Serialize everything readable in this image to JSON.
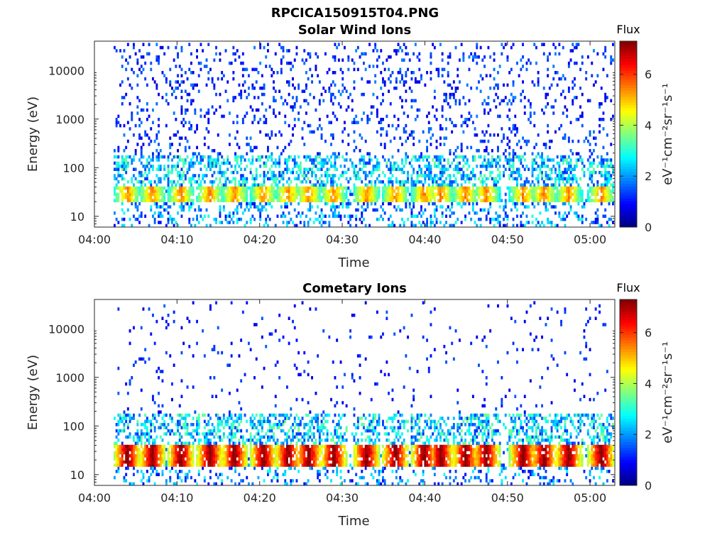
{
  "figure": {
    "filename_title": "RPCICA150915T04.PNG"
  },
  "chart_data": [
    {
      "type": "heatmap",
      "title": "Solar Wind Ions",
      "xlabel": "Time",
      "ylabel": "Energy (eV)",
      "x_ticks": [
        "04:00",
        "04:10",
        "04:20",
        "04:30",
        "04:40",
        "04:50",
        "05:00"
      ],
      "xlim_minutes": [
        0,
        63
      ],
      "yscale": "log",
      "ylim": [
        6,
        40000
      ],
      "y_ticks": [
        10,
        100,
        1000,
        10000
      ],
      "y_tick_labels": [
        "10",
        "100",
        "1000",
        "10000"
      ],
      "colorbar": {
        "label_top": "Flux",
        "unit": "eV⁻¹cm⁻²sr⁻¹s⁻¹",
        "range": [
          0,
          7.3
        ],
        "ticks": [
          0,
          2,
          4,
          6
        ],
        "colormap": "jet"
      },
      "bursts_minutes": [
        4,
        7,
        10.5,
        14,
        17,
        20.5,
        23.5,
        26,
        29,
        33,
        36.5,
        40,
        42,
        45,
        47.5,
        52,
        54.5,
        57.5,
        61.5
      ],
      "band_energy_range_eV": [
        20,
        45
      ],
      "peak_flux": 5.2,
      "background_flux": 1.3
    },
    {
      "type": "heatmap",
      "title": "Cometary Ions",
      "xlabel": "Time",
      "ylabel": "Energy (eV)",
      "x_ticks": [
        "04:00",
        "04:10",
        "04:20",
        "04:30",
        "04:40",
        "04:50",
        "05:00"
      ],
      "xlim_minutes": [
        0,
        63
      ],
      "yscale": "log",
      "ylim": [
        6,
        40000
      ],
      "y_ticks": [
        10,
        100,
        1000,
        10000
      ],
      "y_tick_labels": [
        "10",
        "100",
        "1000",
        "10000"
      ],
      "colorbar": {
        "label_top": "Flux",
        "unit": "eV⁻¹cm⁻²sr⁻¹s⁻¹",
        "range": [
          0,
          7.3
        ],
        "ticks": [
          0,
          2,
          4,
          6
        ],
        "colormap": "jet"
      },
      "bursts_minutes": [
        4,
        7,
        10.5,
        14,
        17,
        20.5,
        23.5,
        26,
        29,
        33,
        36.5,
        40,
        42,
        45,
        47.5,
        52,
        54.5,
        57.5,
        61.5
      ],
      "band_energy_range_eV": [
        15,
        45
      ],
      "peak_flux": 7.0,
      "background_flux": 1.0
    }
  ]
}
